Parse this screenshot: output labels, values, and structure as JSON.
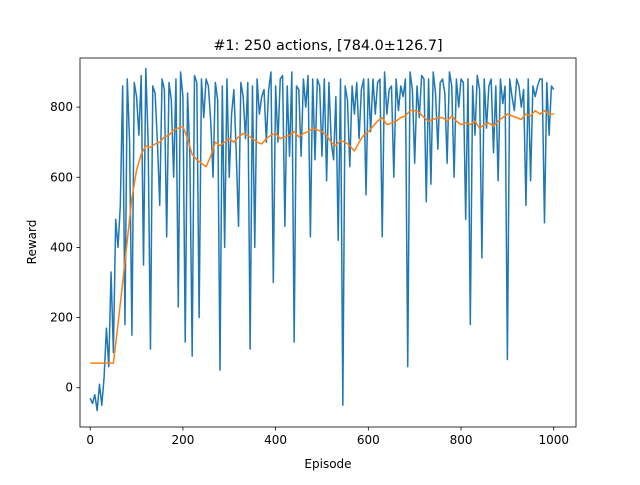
{
  "chart_data": {
    "type": "line",
    "title": "#1: 250 actions, [784.0±126.7]",
    "xlabel": "Episode",
    "ylabel": "Reward",
    "xlim": [
      -22,
      1048
    ],
    "ylim": [
      -112,
      940
    ],
    "xticks": [
      0,
      200,
      400,
      600,
      800,
      1000
    ],
    "yticks": [
      0,
      200,
      400,
      600,
      800
    ],
    "grid": false,
    "legend": "none",
    "series": [
      {
        "color": "#1f77b4",
        "style": "raw",
        "x": [
          0,
          5,
          10,
          15,
          20,
          25,
          30,
          35,
          40,
          45,
          50,
          55,
          60,
          65,
          70,
          75,
          80,
          85,
          90,
          95,
          100,
          105,
          110,
          115,
          120,
          125,
          130,
          135,
          140,
          145,
          150,
          155,
          160,
          165,
          170,
          175,
          180,
          185,
          190,
          195,
          200,
          205,
          210,
          215,
          220,
          225,
          230,
          235,
          240,
          245,
          250,
          255,
          260,
          265,
          270,
          275,
          280,
          285,
          290,
          295,
          300,
          305,
          310,
          315,
          320,
          325,
          330,
          335,
          340,
          345,
          350,
          355,
          360,
          365,
          370,
          375,
          380,
          385,
          390,
          395,
          400,
          405,
          410,
          415,
          420,
          425,
          430,
          435,
          440,
          445,
          450,
          455,
          460,
          465,
          470,
          475,
          480,
          485,
          490,
          495,
          500,
          505,
          510,
          515,
          520,
          525,
          530,
          535,
          540,
          545,
          550,
          555,
          560,
          565,
          570,
          575,
          580,
          585,
          590,
          595,
          600,
          605,
          610,
          615,
          620,
          625,
          630,
          635,
          640,
          645,
          650,
          655,
          660,
          665,
          670,
          675,
          680,
          685,
          690,
          695,
          700,
          705,
          710,
          715,
          720,
          725,
          730,
          735,
          740,
          745,
          750,
          755,
          760,
          765,
          770,
          775,
          780,
          785,
          790,
          795,
          800,
          805,
          810,
          815,
          820,
          825,
          830,
          835,
          840,
          845,
          850,
          855,
          860,
          865,
          870,
          875,
          880,
          885,
          890,
          895,
          900,
          905,
          910,
          915,
          920,
          925,
          930,
          935,
          940,
          945,
          950,
          955,
          960,
          965,
          970,
          975,
          980,
          985,
          990,
          995,
          1000
        ],
        "y": [
          -30,
          -45,
          -20,
          -65,
          10,
          -50,
          30,
          170,
          60,
          330,
          100,
          480,
          400,
          520,
          860,
          180,
          880,
          700,
          150,
          870,
          830,
          720,
          890,
          350,
          910,
          700,
          110,
          860,
          840,
          700,
          520,
          880,
          850,
          430,
          870,
          820,
          600,
          880,
          230,
          900,
          830,
          130,
          840,
          660,
          90,
          890,
          870,
          200,
          880,
          770,
          880,
          860,
          760,
          600,
          870,
          820,
          50,
          860,
          400,
          880,
          600,
          780,
          850,
          670,
          460,
          870,
          830,
          710,
          870,
          110,
          860,
          400,
          880,
          780,
          830,
          850,
          700,
          850,
          900,
          300,
          860,
          700,
          880,
          890,
          460,
          860,
          660,
          900,
          130,
          860,
          850,
          660,
          880,
          800,
          890,
          430,
          880,
          650,
          880,
          860,
          660,
          880,
          590,
          870,
          700,
          650,
          830,
          420,
          880,
          -50,
          860,
          820,
          630,
          860,
          780,
          870,
          710,
          850,
          880,
          550,
          880,
          730,
          880,
          780,
          870,
          880,
          430,
          900,
          780,
          850,
          860,
          600,
          880,
          790,
          860,
          830,
          880,
          60,
          900,
          850,
          640,
          860,
          770,
          890,
          880,
          530,
          880,
          580,
          900,
          840,
          680,
          870,
          880,
          840,
          640,
          900,
          860,
          600,
          880,
          800,
          880,
          870,
          480,
          880,
          180,
          860,
          720,
          890,
          850,
          370,
          880,
          740,
          860,
          880,
          670,
          860,
          590,
          880,
          810,
          860,
          80,
          880,
          830,
          790,
          880,
          860,
          800,
          850,
          520,
          880,
          590,
          860,
          830,
          860,
          880,
          880,
          470,
          870,
          720,
          860,
          850
        ]
      },
      {
        "color": "#ff7f0e",
        "style": "moving-average",
        "x": [
          0,
          45,
          50,
          60,
          70,
          80,
          90,
          100,
          110,
          120,
          130,
          140,
          150,
          160,
          170,
          180,
          190,
          200,
          210,
          220,
          230,
          240,
          250,
          260,
          270,
          280,
          290,
          300,
          310,
          320,
          330,
          340,
          350,
          360,
          370,
          380,
          390,
          400,
          410,
          420,
          430,
          440,
          450,
          460,
          470,
          480,
          490,
          500,
          510,
          520,
          530,
          540,
          550,
          560,
          570,
          580,
          590,
          600,
          610,
          620,
          630,
          640,
          650,
          660,
          670,
          680,
          690,
          700,
          710,
          720,
          730,
          740,
          750,
          760,
          770,
          780,
          790,
          800,
          810,
          820,
          830,
          840,
          850,
          860,
          870,
          880,
          890,
          900,
          910,
          920,
          930,
          940,
          950,
          960,
          970,
          980,
          990,
          1000
        ],
        "y": [
          70,
          70,
          70,
          180,
          300,
          420,
          540,
          620,
          665,
          690,
          685,
          695,
          700,
          715,
          720,
          735,
          740,
          745,
          710,
          665,
          650,
          640,
          630,
          660,
          700,
          690,
          700,
          710,
          700,
          715,
          725,
          720,
          710,
          700,
          695,
          710,
          720,
          725,
          710,
          715,
          720,
          730,
          715,
          725,
          730,
          740,
          735,
          730,
          720,
          700,
          690,
          705,
          700,
          690,
          675,
          700,
          720,
          730,
          745,
          760,
          770,
          750,
          755,
          760,
          770,
          775,
          790,
          790,
          785,
          770,
          760,
          765,
          770,
          770,
          760,
          775,
          760,
          750,
          755,
          750,
          760,
          740,
          750,
          755,
          745,
          760,
          770,
          780,
          775,
          770,
          765,
          780,
          775,
          790,
          780,
          790,
          780,
          780
        ]
      }
    ]
  }
}
